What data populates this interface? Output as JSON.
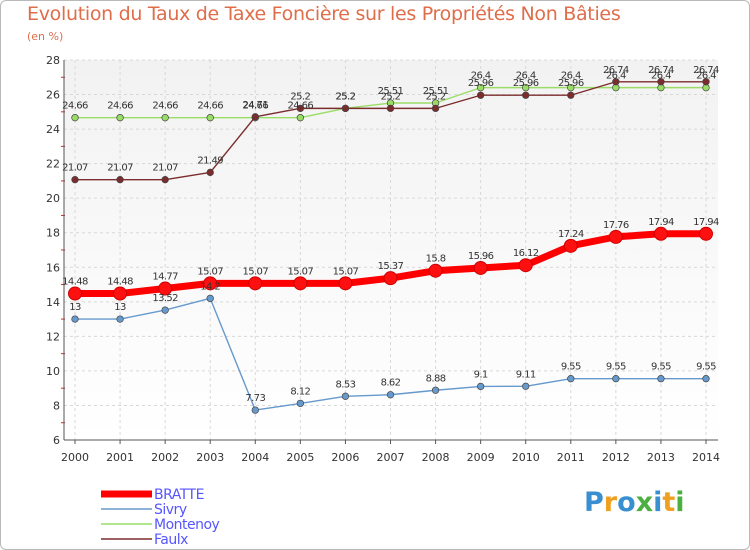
{
  "chart_data": {
    "type": "line",
    "title": "Evolution du Taux de Taxe Foncière sur les Propriétés Non Bâties",
    "ylabel": "(en %)",
    "xlabel": "",
    "ylim": [
      6,
      28
    ],
    "yticks": [
      "6",
      "8",
      "10",
      "12",
      "14",
      "16",
      "18",
      "20",
      "22",
      "24",
      "26",
      "28"
    ],
    "categories": [
      "2000",
      "2001",
      "2002",
      "2003",
      "2004",
      "2005",
      "2006",
      "2007",
      "2008",
      "2009",
      "2010",
      "2011",
      "2012",
      "2013",
      "2014"
    ],
    "grid": true,
    "legend_position": "bottom-left",
    "series": [
      {
        "name": "BRATTE",
        "color": "#ff0000",
        "values": [
          14.48,
          14.48,
          14.77,
          15.07,
          15.07,
          15.07,
          15.07,
          15.37,
          15.8,
          15.96,
          16.12,
          17.24,
          17.76,
          17.94,
          17.94
        ],
        "labels": [
          "14.48",
          "14.48",
          "14.77",
          "15.07",
          "15.07",
          "15.07",
          "15.07",
          "15.37",
          "15.8",
          "15.96",
          "16.12",
          "17.24",
          "17.76",
          "17.94",
          "17.94"
        ]
      },
      {
        "name": "Sivry",
        "color": "#6699cc",
        "values": [
          13,
          13,
          13.52,
          14.2,
          7.73,
          8.12,
          8.53,
          8.62,
          8.88,
          9.1,
          9.11,
          9.55,
          9.55,
          9.55,
          9.55
        ],
        "labels": [
          "13",
          "13",
          "13.52",
          "14.2",
          "7.73",
          "8.12",
          "8.53",
          "8.62",
          "8.88",
          "9.1",
          "9.11",
          "9.55",
          "9.55",
          "9.55",
          "9.55"
        ]
      },
      {
        "name": "Montenoy",
        "color": "#99dd66",
        "values": [
          24.66,
          24.66,
          24.66,
          24.66,
          24.66,
          24.66,
          25.2,
          25.51,
          25.51,
          26.4,
          26.4,
          26.4,
          26.4,
          26.4,
          26.4
        ],
        "labels": [
          "24.66",
          "24.66",
          "24.66",
          "24.66",
          "24.66",
          "24.66",
          "25.2",
          "25.51",
          "25.51",
          "26.4",
          "26.4",
          "26.4",
          "26.4",
          "26.4",
          "26.4"
        ]
      },
      {
        "name": "Faulx",
        "color": "#7b2c2c",
        "values": [
          21.07,
          21.07,
          21.07,
          21.49,
          24.71,
          25.2,
          25.2,
          25.2,
          25.2,
          25.96,
          25.96,
          25.96,
          26.74,
          26.74,
          26.74
        ],
        "labels": [
          "21.07",
          "21.07",
          "21.07",
          "21.49",
          "24.71",
          "25.2",
          "25.2",
          "25.2",
          "25.2",
          "25.96",
          "25.96",
          "25.96",
          "26.74",
          "26.74",
          "26.74"
        ]
      }
    ]
  },
  "logo": {
    "letters": [
      "P",
      "r",
      "o",
      "x",
      "i",
      "t",
      "i"
    ],
    "colors": [
      "#3a8fd0",
      "#f0a020",
      "#3a8fd0",
      "#4cb040",
      "#3a8fd0",
      "#f0a020",
      "#4cb040"
    ]
  }
}
